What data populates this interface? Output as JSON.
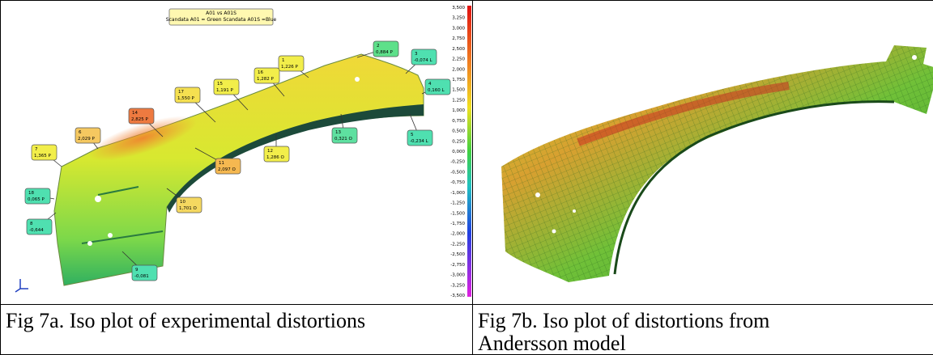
{
  "figure_a": {
    "title": "A01 vs A01S",
    "subtitle": "Scandata A01 = Green Scandata A01S =Blue",
    "colorbar_ticks": [
      "3,500",
      "3,250",
      "3,000",
      "2,750",
      "2,500",
      "2,250",
      "2,000",
      "1,750",
      "1,500",
      "1,250",
      "1,000",
      "0,750",
      "0,500",
      "0,250",
      "0,000",
      "-0,250",
      "-0,500",
      "-0,750",
      "-1,000",
      "-1,250",
      "-1,500",
      "-1,750",
      "-2,000",
      "-2,250",
      "-2,500",
      "-2,750",
      "-3,000",
      "-3,250",
      "-3,500"
    ],
    "callouts": [
      {
        "id": "1",
        "value": "1,226 P",
        "color": "#f2ee4a"
      },
      {
        "id": "2",
        "value": "0,884 P",
        "color": "#5ee08a"
      },
      {
        "id": "3",
        "value": "-0,074 L",
        "color": "#4fe0b0"
      },
      {
        "id": "4",
        "value": "0,160 L",
        "color": "#4fe0b0"
      },
      {
        "id": "5",
        "value": "-0,234 L",
        "color": "#4fe0b0"
      },
      {
        "id": "6",
        "value": "2,029 P",
        "color": "#f5c860"
      },
      {
        "id": "7",
        "value": "1,365 P",
        "color": "#f2ee4a"
      },
      {
        "id": "8",
        "value": "-0,644",
        "color": "#4fe0b0"
      },
      {
        "id": "9",
        "value": "-0,081",
        "color": "#4fe0b0"
      },
      {
        "id": "10",
        "value": "1,701 O",
        "color": "#f5d860"
      },
      {
        "id": "11",
        "value": "2,097 O",
        "color": "#f5b850"
      },
      {
        "id": "12",
        "value": "1,286 O",
        "color": "#f2ee4a"
      },
      {
        "id": "13",
        "value": "0,321 O",
        "color": "#5ee0a0"
      },
      {
        "id": "14",
        "value": "2,825 P",
        "color": "#ee7a40"
      },
      {
        "id": "15",
        "value": "1,191 P",
        "color": "#f2ee4a"
      },
      {
        "id": "16",
        "value": "1,282 P",
        "color": "#f2ee4a"
      },
      {
        "id": "17",
        "value": "1,550 P",
        "color": "#f5e050"
      },
      {
        "id": "18",
        "value": "0,065 P",
        "color": "#4fe0b0"
      }
    ],
    "caption": "Fig 7a. Iso plot of experimental distortions"
  },
  "figure_b": {
    "caption": "Fig 7b. Iso plot of distortions from Andersson model"
  }
}
